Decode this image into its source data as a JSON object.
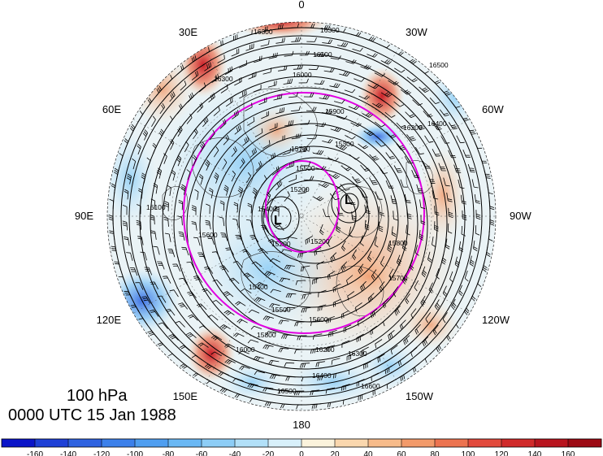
{
  "map": {
    "level": "100 hPa",
    "valid_time": "0000 UTC 15 Jan 1988",
    "longitude_labels": [
      "0",
      "30W",
      "60W",
      "90W",
      "120W",
      "150W",
      "180",
      "150E",
      "120E",
      "90E",
      "60E",
      "30E"
    ],
    "contour_labels": [
      "16300",
      "16300",
      "16100",
      "16000",
      "16200",
      "16400",
      "16500",
      "16300",
      "15900",
      "15700",
      "15500",
      "15300",
      "15200",
      "15200",
      "15400",
      "15500",
      "15600",
      "15800",
      "16000",
      "16200",
      "16300",
      "16400",
      "16500",
      "16600",
      "16100",
      "15600",
      "15400",
      "15200",
      "15800",
      "15700"
    ],
    "low_markers": [
      "L",
      "L"
    ],
    "colors": {
      "contour": "#000000",
      "reference_circle": "#e100e1",
      "positive_anomaly": "#d62020",
      "negative_anomaly": "#2e7ee0"
    }
  },
  "colorbar": {
    "tick_labels": [
      "-160",
      "-140",
      "-120",
      "-100",
      "-80",
      "-60",
      "-40",
      "-20",
      "0",
      "20",
      "40",
      "60",
      "80",
      "100",
      "120",
      "140",
      "160"
    ],
    "colors": [
      "#0a14c8",
      "#1e40d6",
      "#2e62e0",
      "#3c80ea",
      "#4f9ef0",
      "#6ab8f4",
      "#8dcdf6",
      "#b2e0f8",
      "#d8f0fa",
      "#fbf3dc",
      "#fad7ae",
      "#f7bb8a",
      "#f29a6a",
      "#ec7350",
      "#e24a3c",
      "#d02a2a",
      "#b8141e",
      "#9c0a14"
    ]
  }
}
